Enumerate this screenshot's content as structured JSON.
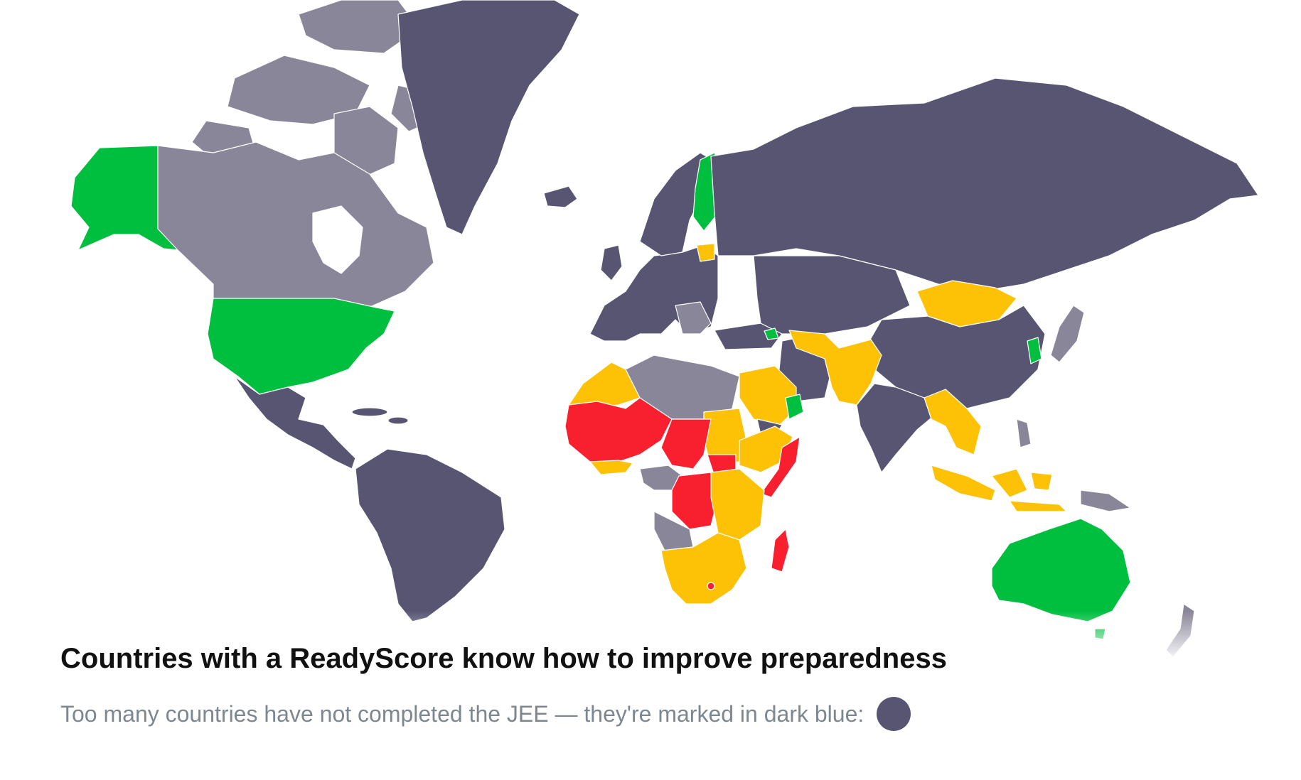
{
  "caption": {
    "title": "Countries with a ReadyScore know how to improve preparedness",
    "subtitle": "Too many countries have not completed the JEE — they're marked in dark blue:"
  },
  "colors": {
    "not_completed": "#585573",
    "other": "#8a8699",
    "green": "#00bf3f",
    "yellow": "#fdc105",
    "red": "#f8202f",
    "text_dark": "#111111",
    "text_gray": "#7d8790",
    "background": "#ffffff"
  }
}
